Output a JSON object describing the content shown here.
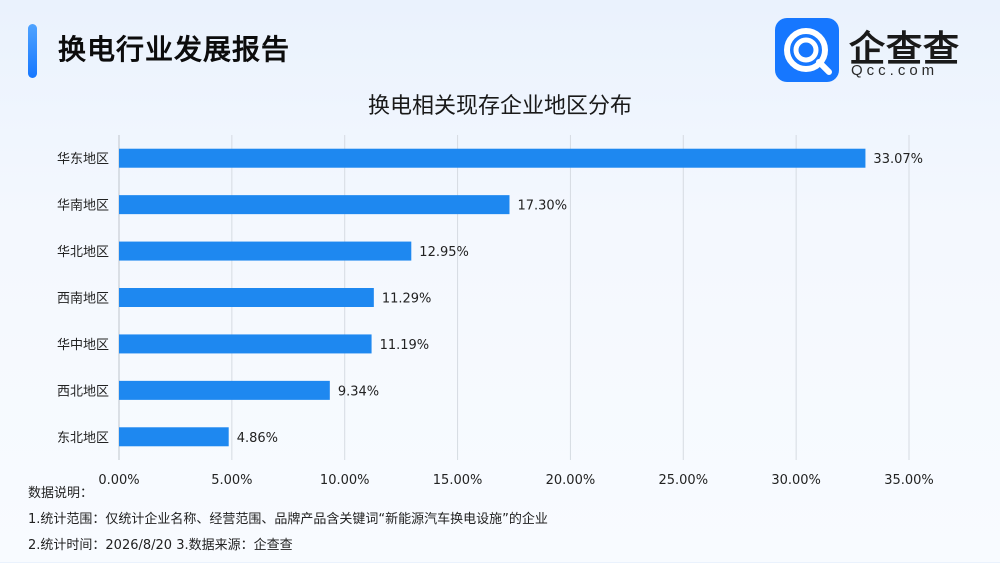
{
  "header": {
    "title": "换电行业发展报告",
    "brand_name": "企查查",
    "brand_sub": "Qcc.com"
  },
  "colors": {
    "accent": "#1677ff",
    "bar": "#1e88f0",
    "grid": "#d6dbe2",
    "text": "#111111"
  },
  "chart_data": {
    "type": "bar",
    "orientation": "horizontal",
    "title": "换电相关现存企业地区分布",
    "categories": [
      "华东地区",
      "华南地区",
      "华北地区",
      "西南地区",
      "华中地区",
      "西北地区",
      "东北地区"
    ],
    "values": [
      33.07,
      17.3,
      12.95,
      11.29,
      11.19,
      9.34,
      4.86
    ],
    "value_labels": [
      "33.07%",
      "17.30%",
      "12.95%",
      "11.29%",
      "11.19%",
      "9.34%",
      "4.86%"
    ],
    "xlim": [
      0,
      35
    ],
    "xticks": [
      0,
      5,
      10,
      15,
      20,
      25,
      30,
      35
    ],
    "xtick_labels": [
      "0.00%",
      "5.00%",
      "10.00%",
      "15.00%",
      "20.00%",
      "25.00%",
      "30.00%",
      "35.00%"
    ],
    "xlabel": "",
    "ylabel": "",
    "grid": "vertical",
    "legend": "none"
  },
  "notes": {
    "heading": "数据说明：",
    "line1": "1.统计范围：仅统计企业名称、经营范围、品牌产品含关键词“新能源汽车换电设施”的企业",
    "line2": "2.统计时间：2026/8/20 3.数据来源：企查查"
  }
}
